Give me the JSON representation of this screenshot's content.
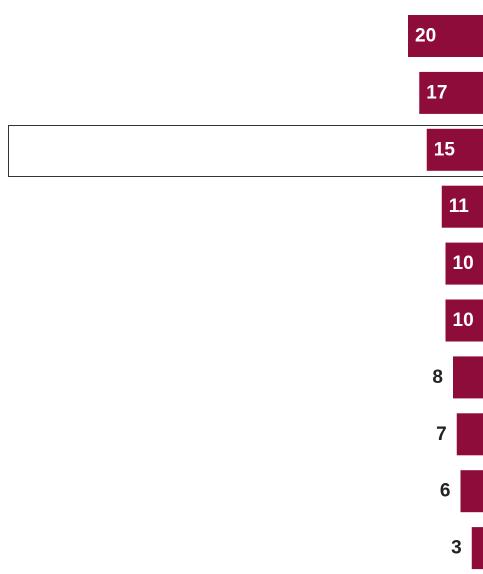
{
  "chart_data": {
    "type": "bar",
    "orientation": "horizontal",
    "color": "#8e0c3a",
    "values": [
      20,
      17,
      15,
      11,
      10,
      10,
      8,
      7,
      6,
      3
    ]
  }
}
